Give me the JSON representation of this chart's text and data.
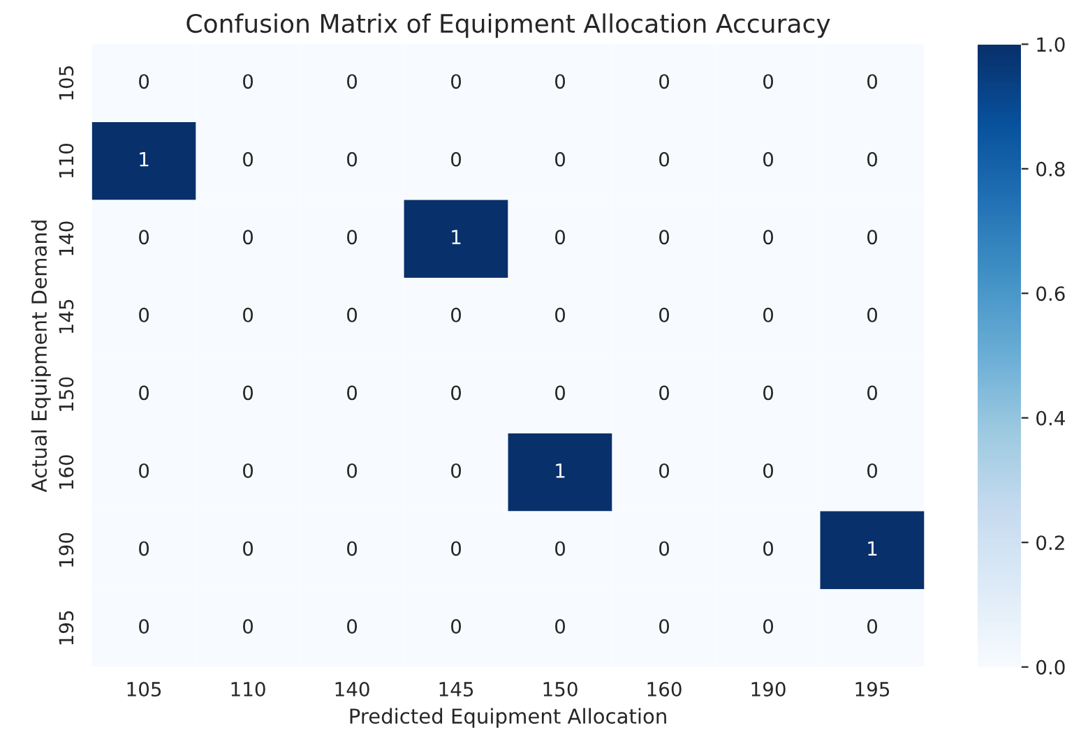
{
  "chart_data": {
    "type": "heatmap",
    "title": "Confusion Matrix of Equipment Allocation Accuracy",
    "xlabel": "Predicted Equipment Allocation",
    "ylabel": "Actual Equipment Demand",
    "categories": [
      "105",
      "110",
      "140",
      "145",
      "150",
      "160",
      "190",
      "195"
    ],
    "y_categories": [
      "105",
      "110",
      "140",
      "145",
      "150",
      "160",
      "190",
      "195"
    ],
    "cells": [
      [
        0,
        0,
        0,
        0,
        0,
        0,
        0,
        0
      ],
      [
        1,
        0,
        0,
        0,
        0,
        0,
        0,
        0
      ],
      [
        0,
        0,
        0,
        1,
        0,
        0,
        0,
        0
      ],
      [
        0,
        0,
        0,
        0,
        0,
        0,
        0,
        0
      ],
      [
        0,
        0,
        0,
        0,
        0,
        0,
        0,
        0
      ],
      [
        0,
        0,
        0,
        0,
        1,
        0,
        0,
        0
      ],
      [
        0,
        0,
        0,
        0,
        0,
        0,
        0,
        1
      ],
      [
        0,
        0,
        0,
        0,
        0,
        0,
        0,
        0
      ]
    ],
    "clim": [
      0,
      1
    ],
    "cticks": [
      {
        "value": 0,
        "label": "0.0"
      },
      {
        "value": 0.2,
        "label": "0.2"
      },
      {
        "value": 0.4,
        "label": "0.4"
      },
      {
        "value": 0.6,
        "label": "0.6"
      },
      {
        "value": 0.8,
        "label": "0.8"
      },
      {
        "value": 1,
        "label": "1.0"
      }
    ],
    "data_labels": true
  }
}
